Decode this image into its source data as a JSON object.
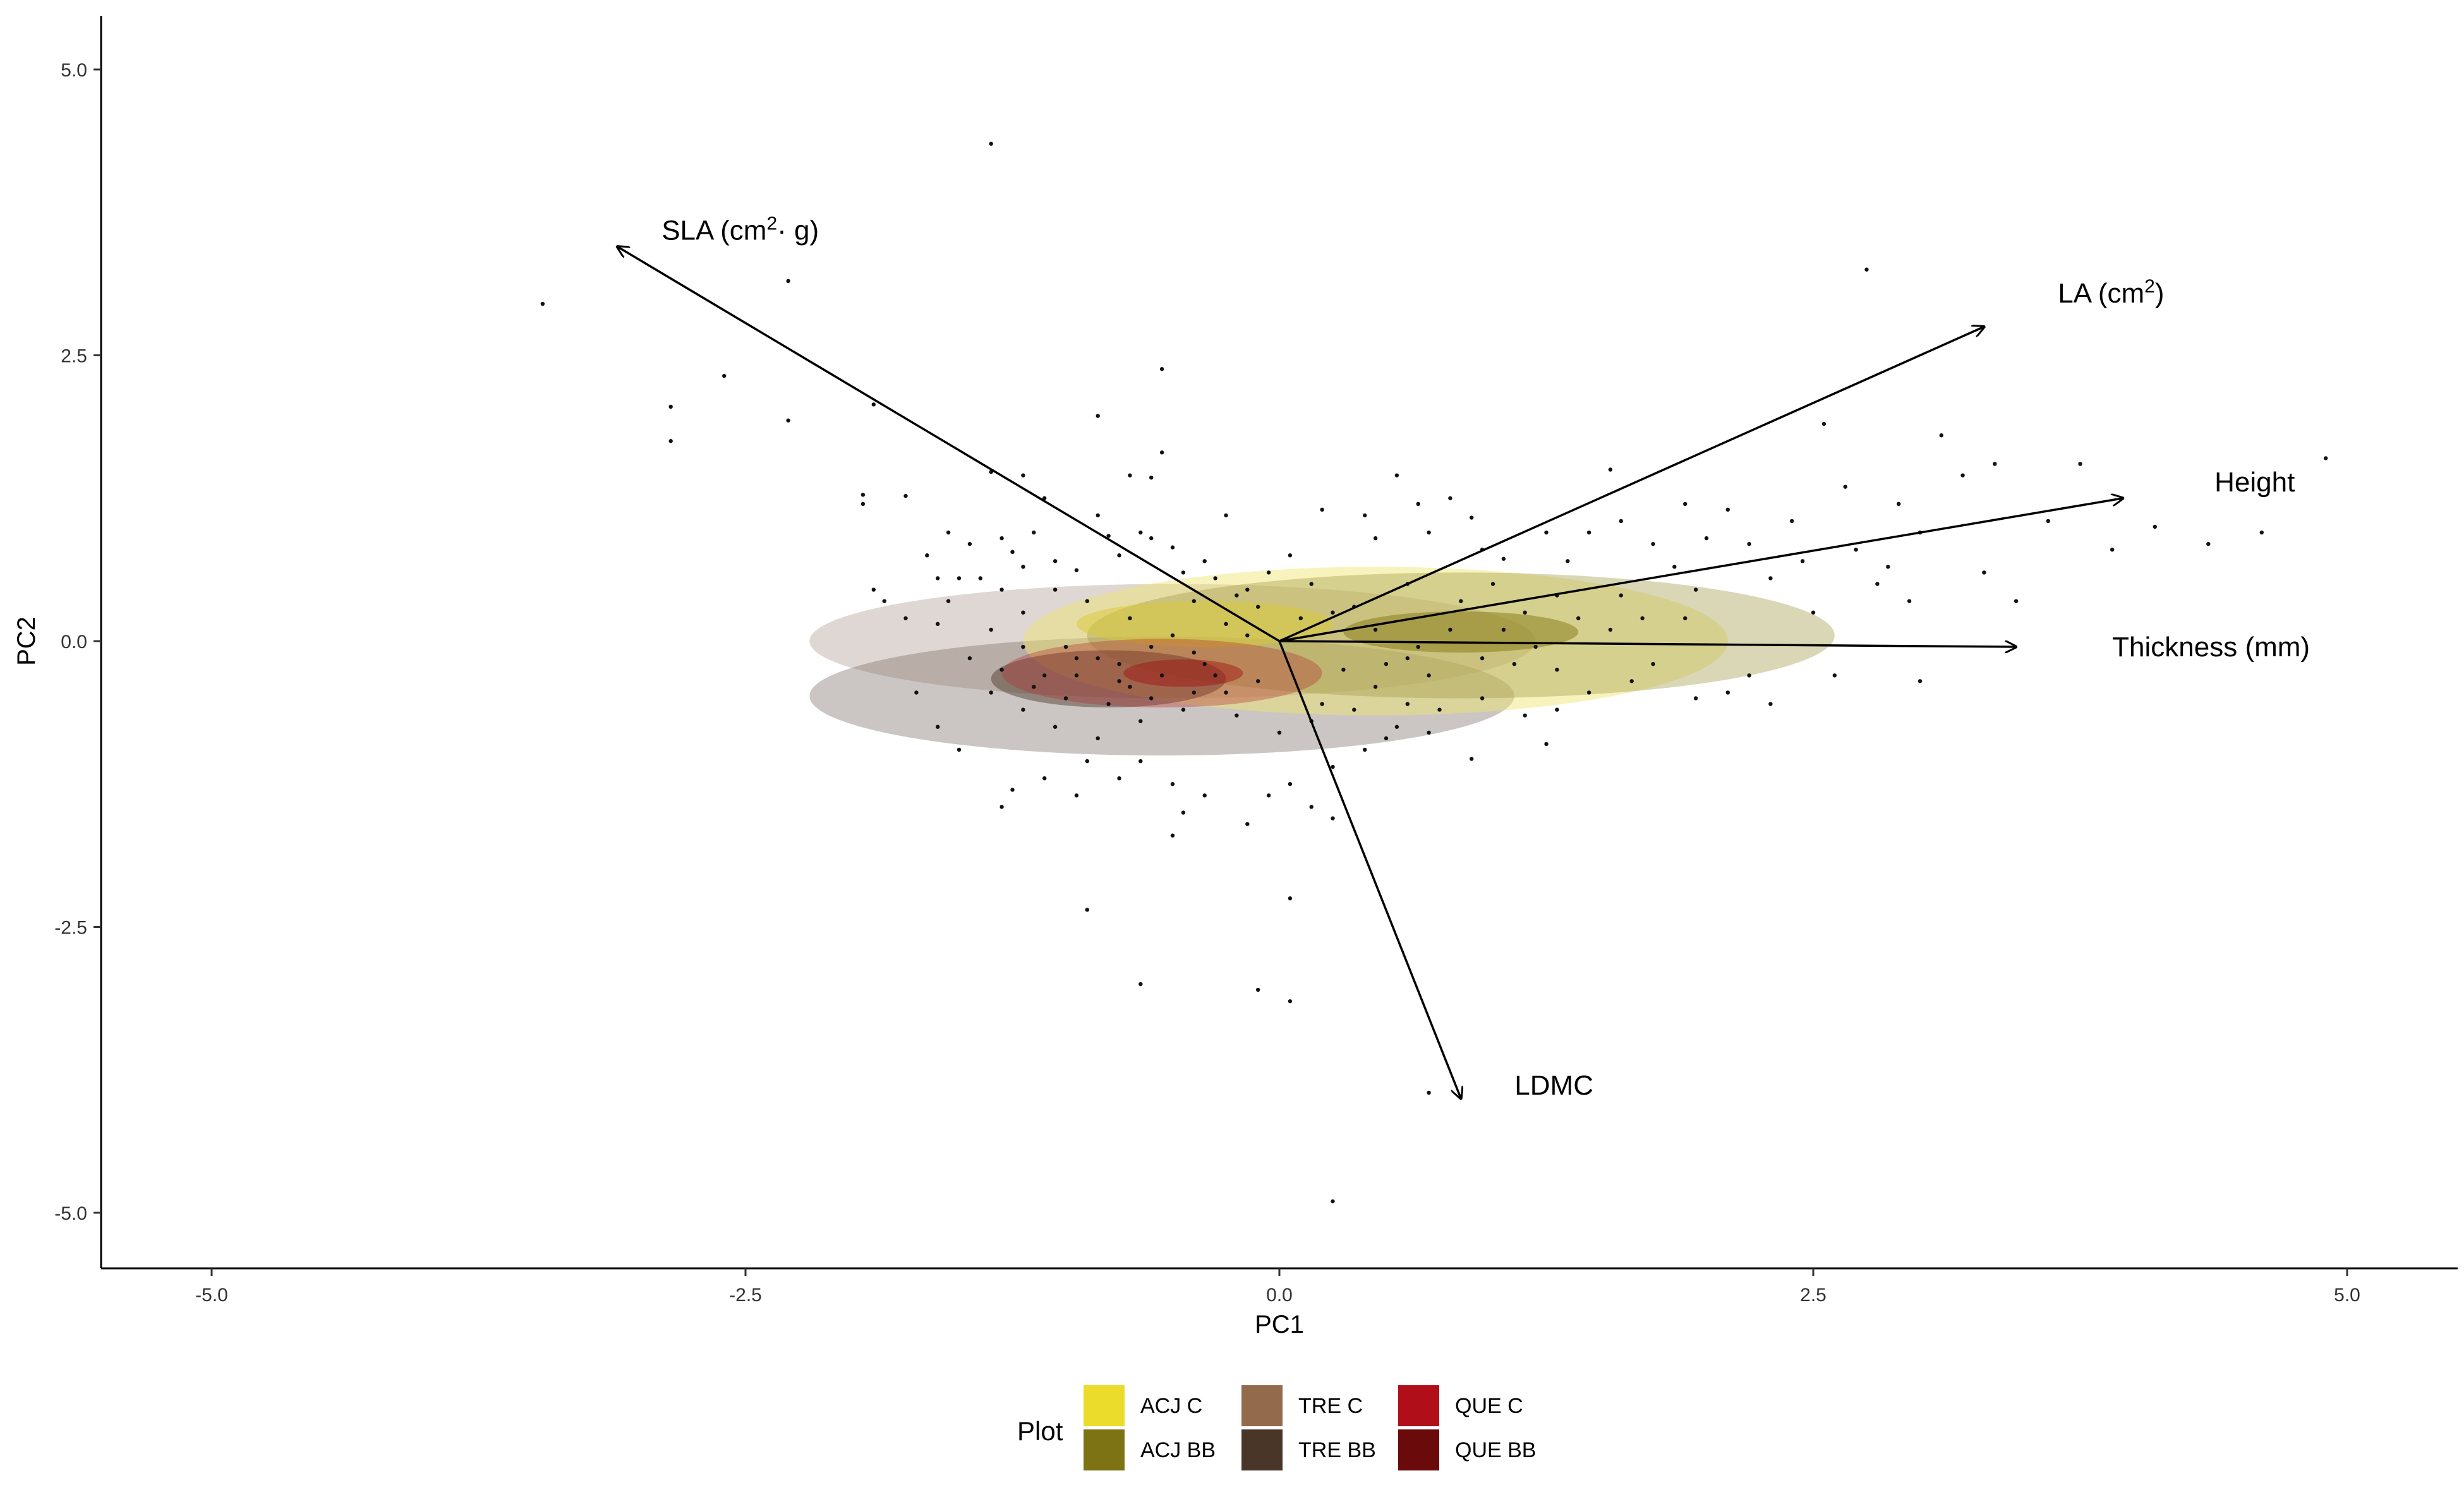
{
  "chart_data": {
    "type": "scatter",
    "subtype": "pca_biplot_with_density_contours",
    "xlabel": "PC1",
    "ylabel": "PC2",
    "xlim": [
      -5.5,
      5.5
    ],
    "ylim": [
      -5.5,
      5.5
    ],
    "x_ticks": [
      -5.0,
      -2.5,
      0.0,
      2.5,
      5.0
    ],
    "x_tick_labels": [
      "-5.0",
      "-2.5",
      "0.0",
      "2.5",
      "5.0"
    ],
    "y_ticks": [
      5.0,
      2.5,
      0.0,
      -2.5,
      -5.0
    ],
    "y_tick_labels": [
      "5.0",
      "2.5",
      "0.0",
      "-2.5",
      "-5.0"
    ],
    "grid": false,
    "legend": {
      "title": "Plot",
      "position": "bottom",
      "entries": [
        {
          "label": "ACJ C",
          "color": "#ebdc2c"
        },
        {
          "label": "ACJ BB",
          "color": "#7d7314"
        },
        {
          "label": "TRE C",
          "color": "#946a4c"
        },
        {
          "label": "TRE BB",
          "color": "#4a3628"
        },
        {
          "label": "QUE C",
          "color": "#b00f1a"
        },
        {
          "label": "QUE BB",
          "color": "#6a0a0a"
        }
      ]
    },
    "loadings": [
      {
        "name": "SLA",
        "label_main": "SLA (cm",
        "label_sup": "2",
        "label_rest": "· g)",
        "x": -3.1,
        "y": 3.45
      },
      {
        "name": "LA",
        "label_main": "LA (cm",
        "label_sup": "2",
        "label_rest": ")",
        "x": 3.3,
        "y": 2.75
      },
      {
        "name": "Height",
        "label_main": "Height",
        "label_sup": "",
        "label_rest": "",
        "x": 3.95,
        "y": 1.25
      },
      {
        "name": "Thickness",
        "label_main": "Thickness (mm)",
        "label_sup": "",
        "label_rest": "",
        "x": 3.45,
        "y": -0.05
      },
      {
        "name": "LDMC",
        "label_main": "LDMC",
        "label_sup": "",
        "label_rest": "",
        "x": 0.85,
        "y": -4.0
      }
    ],
    "density_regions": [
      {
        "group": "TRE BB",
        "color": "#5e4e44",
        "opacity": 0.32,
        "cx": -0.55,
        "cy": -0.48,
        "rx": 1.65,
        "ry": 0.52
      },
      {
        "group": "TRE C",
        "color": "#8a6f60",
        "opacity": 0.28,
        "cx": -0.5,
        "cy": 0.0,
        "rx": 1.7,
        "ry": 0.5
      },
      {
        "group": "ACJ C",
        "color": "#f0e46a",
        "opacity": 0.45,
        "cx": 0.45,
        "cy": 0.0,
        "rx": 1.65,
        "ry": 0.65
      },
      {
        "group": "ACJ BB",
        "color": "#a39a48",
        "opacity": 0.4,
        "cx": 0.85,
        "cy": 0.05,
        "rx": 1.75,
        "ry": 0.55
      },
      {
        "group": "ACJ C",
        "color": "#d9c833",
        "opacity": 0.5,
        "cx": -0.35,
        "cy": 0.15,
        "rx": 0.6,
        "ry": 0.2
      },
      {
        "group": "ACJ BB",
        "color": "#8a7f1e",
        "opacity": 0.55,
        "cx": 0.85,
        "cy": 0.08,
        "rx": 0.55,
        "ry": 0.18
      },
      {
        "group": "TRE BB",
        "color": "#4a3628",
        "opacity": 0.45,
        "cx": -0.8,
        "cy": -0.33,
        "rx": 0.55,
        "ry": 0.25
      },
      {
        "group": "QUE C",
        "color": "#b52a2a",
        "opacity": 0.35,
        "cx": -0.55,
        "cy": -0.28,
        "rx": 0.75,
        "ry": 0.3
      },
      {
        "group": "QUE C",
        "color": "#a01010",
        "opacity": 0.45,
        "cx": -0.45,
        "cy": -0.28,
        "rx": 0.28,
        "ry": 0.12
      }
    ],
    "points": [
      [
        -1.35,
        4.35
      ],
      [
        -3.45,
        2.95
      ],
      [
        -2.3,
        3.15
      ],
      [
        2.75,
        3.25
      ],
      [
        -2.85,
        2.05
      ],
      [
        -2.85,
        1.75
      ],
      [
        -2.6,
        2.32
      ],
      [
        -2.3,
        1.93
      ],
      [
        -1.9,
        2.07
      ],
      [
        -0.55,
        2.38
      ],
      [
        -0.85,
        1.97
      ],
      [
        -0.55,
        1.65
      ],
      [
        -0.6,
        1.43
      ],
      [
        -0.7,
        1.45
      ],
      [
        -0.25,
        1.1
      ],
      [
        -1.35,
        1.48
      ],
      [
        -1.2,
        1.45
      ],
      [
        -1.1,
        1.25
      ],
      [
        -1.95,
        1.2
      ],
      [
        -1.95,
        1.28
      ],
      [
        -1.75,
        1.27
      ],
      [
        -1.55,
        0.95
      ],
      [
        -1.9,
        0.45
      ],
      [
        -1.85,
        0.35
      ],
      [
        -1.65,
        0.75
      ],
      [
        -1.6,
        0.55
      ],
      [
        -1.75,
        0.2
      ],
      [
        -1.55,
        0.35
      ],
      [
        -1.45,
        0.85
      ],
      [
        -1.3,
        0.9
      ],
      [
        -1.25,
        0.78
      ],
      [
        -1.2,
        0.65
      ],
      [
        -1.4,
        0.55
      ],
      [
        -1.15,
        0.95
      ],
      [
        -1.05,
        0.7
      ],
      [
        -0.95,
        0.62
      ],
      [
        -0.85,
        1.1
      ],
      [
        -0.8,
        0.92
      ],
      [
        -0.75,
        0.75
      ],
      [
        -0.65,
        0.95
      ],
      [
        -0.6,
        0.9
      ],
      [
        -0.5,
        0.82
      ],
      [
        -0.45,
        0.6
      ],
      [
        -0.35,
        0.7
      ],
      [
        -0.3,
        0.55
      ],
      [
        -0.15,
        0.45
      ],
      [
        0.05,
        0.75
      ],
      [
        0.2,
        1.15
      ],
      [
        0.4,
        1.1
      ],
      [
        0.45,
        0.9
      ],
      [
        0.55,
        1.45
      ],
      [
        0.65,
        1.2
      ],
      [
        0.7,
        0.95
      ],
      [
        0.8,
        1.25
      ],
      [
        0.9,
        1.08
      ],
      [
        0.95,
        0.8
      ],
      [
        1.05,
        0.72
      ],
      [
        1.25,
        0.95
      ],
      [
        1.35,
        0.7
      ],
      [
        1.45,
        0.95
      ],
      [
        1.55,
        1.5
      ],
      [
        1.6,
        1.05
      ],
      [
        1.75,
        0.85
      ],
      [
        1.85,
        0.65
      ],
      [
        1.9,
        1.2
      ],
      [
        1.95,
        0.45
      ],
      [
        2.0,
        0.9
      ],
      [
        2.1,
        1.15
      ],
      [
        2.2,
        0.85
      ],
      [
        2.3,
        0.55
      ],
      [
        2.4,
        1.05
      ],
      [
        2.5,
        0.25
      ],
      [
        2.55,
        1.9
      ],
      [
        2.65,
        1.35
      ],
      [
        2.7,
        0.8
      ],
      [
        2.8,
        0.5
      ],
      [
        2.9,
        1.2
      ],
      [
        3.0,
        0.95
      ],
      [
        3.1,
        1.8
      ],
      [
        3.2,
        1.45
      ],
      [
        3.35,
        1.55
      ],
      [
        3.45,
        0.35
      ],
      [
        3.6,
        1.05
      ],
      [
        3.75,
        1.55
      ],
      [
        3.9,
        0.8
      ],
      [
        4.1,
        1.0
      ],
      [
        4.35,
        0.85
      ],
      [
        4.6,
        0.95
      ],
      [
        4.9,
        1.6
      ],
      [
        3.3,
        0.6
      ],
      [
        2.95,
        0.35
      ],
      [
        2.6,
        -0.3
      ],
      [
        2.3,
        -0.55
      ],
      [
        2.1,
        -0.45
      ],
      [
        1.95,
        -0.5
      ],
      [
        1.75,
        -0.2
      ],
      [
        1.65,
        -0.35
      ],
      [
        1.55,
        0.1
      ],
      [
        1.45,
        -0.45
      ],
      [
        1.3,
        -0.6
      ],
      [
        1.25,
        -0.9
      ],
      [
        0.9,
        -1.03
      ],
      [
        0.7,
        -0.8
      ],
      [
        0.55,
        -0.75
      ],
      [
        0.4,
        -0.95
      ],
      [
        0.25,
        -1.1
      ],
      [
        0.15,
        -1.45
      ],
      [
        0.05,
        -1.25
      ],
      [
        -0.05,
        -1.35
      ],
      [
        0.25,
        -1.55
      ],
      [
        -0.15,
        -1.6
      ],
      [
        -0.35,
        -1.35
      ],
      [
        -0.5,
        -1.25
      ],
      [
        -0.65,
        -1.05
      ],
      [
        -0.75,
        -1.2
      ],
      [
        -0.95,
        -1.35
      ],
      [
        -1.1,
        -1.2
      ],
      [
        -1.25,
        -1.3
      ],
      [
        -1.3,
        -1.45
      ],
      [
        -1.5,
        -0.95
      ],
      [
        -1.6,
        -0.75
      ],
      [
        -1.7,
        -0.45
      ],
      [
        -0.9,
        -1.05
      ],
      [
        -0.45,
        -1.5
      ],
      [
        -0.5,
        -1.7
      ],
      [
        0.05,
        -2.25
      ],
      [
        -0.9,
        -2.35
      ],
      [
        -0.65,
        -3.0
      ],
      [
        -0.1,
        -3.05
      ],
      [
        0.05,
        -3.15
      ],
      [
        0.7,
        -3.95
      ],
      [
        0.25,
        -4.9
      ],
      [
        0.5,
        -0.85
      ],
      [
        0.6,
        -0.55
      ],
      [
        0.3,
        -0.25
      ],
      [
        0.1,
        0.2
      ],
      [
        -0.1,
        0.3
      ],
      [
        -0.25,
        0.15
      ],
      [
        -0.4,
        -0.1
      ],
      [
        -0.6,
        -0.05
      ],
      [
        -0.75,
        -0.2
      ],
      [
        -0.95,
        -0.15
      ],
      [
        -1.1,
        -0.3
      ],
      [
        -1.2,
        -0.05
      ],
      [
        -1.3,
        -0.25
      ],
      [
        -1.0,
        -0.5
      ],
      [
        -0.8,
        -0.55
      ],
      [
        -0.65,
        -0.7
      ],
      [
        -0.45,
        -0.6
      ],
      [
        -0.25,
        -0.45
      ],
      [
        -0.1,
        -0.35
      ],
      [
        0.2,
        -0.55
      ],
      [
        0.45,
        -0.4
      ],
      [
        0.7,
        -0.3
      ],
      [
        0.95,
        -0.15
      ],
      [
        1.15,
        0.25
      ],
      [
        1.3,
        0.4
      ],
      [
        1.1,
        -0.2
      ],
      [
        0.85,
        0.35
      ],
      [
        0.6,
        0.5
      ],
      [
        0.35,
        0.3
      ],
      [
        0.15,
        0.5
      ],
      [
        -0.05,
        0.6
      ],
      [
        -0.2,
        0.4
      ],
      [
        -0.9,
        0.35
      ],
      [
        -1.05,
        0.45
      ],
      [
        -1.2,
        0.25
      ],
      [
        -1.35,
        0.1
      ],
      [
        -1.45,
        -0.15
      ],
      [
        -1.35,
        -0.45
      ],
      [
        -1.2,
        -0.6
      ],
      [
        -1.05,
        -0.75
      ],
      [
        -0.85,
        -0.85
      ],
      [
        -0.7,
        -0.4
      ],
      [
        -0.55,
        -0.3
      ],
      [
        -0.35,
        -0.2
      ],
      [
        -0.2,
        -0.65
      ],
      [
        0.0,
        -0.8
      ],
      [
        0.15,
        -0.7
      ],
      [
        0.35,
        -0.6
      ],
      [
        0.6,
        -0.15
      ],
      [
        0.8,
        0.1
      ],
      [
        1.0,
        0.5
      ],
      [
        1.2,
        -0.05
      ],
      [
        1.4,
        0.2
      ],
      [
        1.6,
        0.4
      ],
      [
        1.7,
        0.2
      ],
      [
        -1.15,
        -0.4
      ],
      [
        -0.95,
        -0.3
      ],
      [
        -0.75,
        -0.35
      ],
      [
        -0.6,
        -0.5
      ],
      [
        -0.4,
        -0.45
      ],
      [
        -0.3,
        -0.3
      ],
      [
        -0.85,
        -0.15
      ],
      [
        -1.0,
        -0.05
      ],
      [
        -0.5,
        0.05
      ],
      [
        -0.15,
        0.05
      ],
      [
        0.45,
        0.1
      ],
      [
        0.65,
        -0.05
      ],
      [
        1.05,
        0.1
      ],
      [
        1.3,
        -0.25
      ],
      [
        2.2,
        -0.3
      ],
      [
        1.9,
        0.2
      ],
      [
        2.45,
        0.7
      ],
      [
        2.85,
        0.65
      ],
      [
        3.0,
        -0.35
      ],
      [
        -1.6,
        0.15
      ],
      [
        -1.5,
        0.55
      ],
      [
        -1.3,
        0.45
      ],
      [
        -0.7,
        0.2
      ],
      [
        -0.4,
        0.35
      ],
      [
        0.25,
        0.25
      ],
      [
        0.5,
        -0.2
      ],
      [
        0.95,
        -0.5
      ],
      [
        1.15,
        -0.65
      ],
      [
        0.75,
        -0.6
      ]
    ]
  }
}
